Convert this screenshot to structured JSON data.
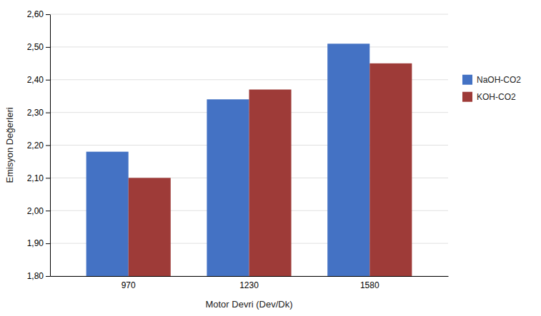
{
  "chart_data": {
    "type": "bar",
    "categories": [
      "970",
      "1230",
      "1580"
    ],
    "series": [
      {
        "name": "NaOH-CO2",
        "color": "#4472C4",
        "values": [
          2.18,
          2.34,
          2.51
        ]
      },
      {
        "name": "KOH-CO2",
        "color": "#9E3B38",
        "values": [
          2.1,
          2.37,
          2.45
        ]
      }
    ],
    "xlabel": "Motor Devri (Dev/Dk)",
    "ylabel": "Emisyon Değerleri",
    "ylim": [
      1.8,
      2.6
    ],
    "yticks": [
      {
        "value": 1.8,
        "label": "1,80"
      },
      {
        "value": 1.9,
        "label": "1,90"
      },
      {
        "value": 2.0,
        "label": "2,00"
      },
      {
        "value": 2.1,
        "label": "2,10"
      },
      {
        "value": 2.2,
        "label": "2,20"
      },
      {
        "value": 2.3,
        "label": "2,30"
      },
      {
        "value": 2.4,
        "label": "2,40"
      },
      {
        "value": 2.5,
        "label": "2,50"
      },
      {
        "value": 2.6,
        "label": "2,60"
      }
    ],
    "grid": true,
    "legend": "right"
  }
}
